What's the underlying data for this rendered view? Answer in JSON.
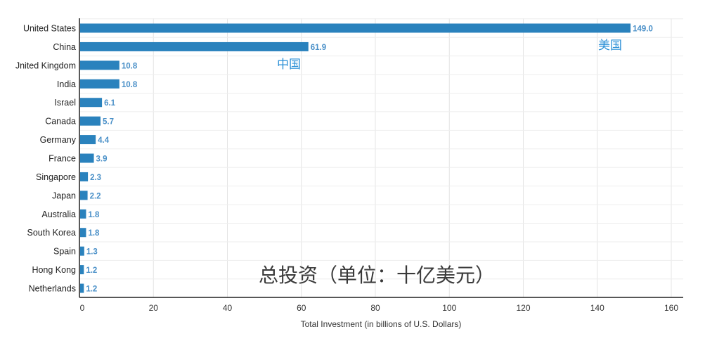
{
  "chart_data": {
    "type": "bar",
    "orientation": "horizontal",
    "categories": [
      "United States",
      "China",
      "United Kingdom",
      "India",
      "Israel",
      "Canada",
      "Germany",
      "France",
      "Singapore",
      "Japan",
      "Australia",
      "South Korea",
      "Spain",
      "Hong Kong",
      "Netherlands"
    ],
    "category_labels": [
      "United States",
      "China",
      "Jnited Kingdom",
      "India",
      "Israel",
      "Canada",
      "Germany",
      "France",
      "Singapore",
      "Japan",
      "Australia",
      "South Korea",
      "Spain",
      "Hong Kong",
      "Netherlands"
    ],
    "values": [
      149.0,
      61.9,
      10.8,
      10.8,
      6.1,
      5.7,
      4.4,
      3.9,
      2.3,
      2.2,
      1.8,
      1.8,
      1.3,
      1.2,
      1.2
    ],
    "value_labels": [
      "149.0",
      "61.9",
      "10.8",
      "10.8",
      "6.1",
      "5.7",
      "4.4",
      "3.9",
      "2.3",
      "2.2",
      "1.8",
      "1.8",
      "1.3",
      "1.2",
      "1.2"
    ],
    "xlabel": "Total Investment (in billions of U.S. Dollars)",
    "ylabel": "",
    "xlim": [
      0,
      160
    ],
    "xticks": [
      0,
      20,
      40,
      60,
      80,
      100,
      120,
      140,
      160
    ],
    "grid": true,
    "legend": "none",
    "colors": {
      "bar": "#2a82bd",
      "value_label": "#4a90c8",
      "annotation": "#2a8fd6",
      "caption": "#3a3a3a"
    },
    "annotations": {
      "united_states": "美国",
      "china": "中国",
      "total": "总投资（单位：十亿美元）"
    }
  }
}
